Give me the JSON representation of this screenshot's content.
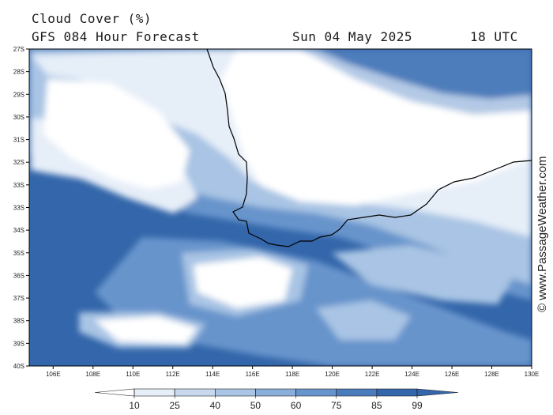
{
  "header": {
    "title": "Cloud Cover (%)",
    "model_line": "GFS 084 Hour Forecast",
    "date": "Sun 04 May 2025",
    "time": "18 UTC"
  },
  "map": {
    "lat_labels": [
      "27S",
      "28S",
      "29S",
      "30S",
      "31S",
      "32S",
      "33S",
      "33S",
      "34S",
      "35S",
      "36S",
      "37S",
      "38S",
      "39S",
      "40S"
    ],
    "lon_labels": [
      "106E",
      "108E",
      "110E",
      "112E",
      "114E",
      "116E",
      "118E",
      "120E",
      "122E",
      "124E",
      "126E",
      "128E",
      "130E"
    ]
  },
  "colorbar": {
    "labels": [
      "10",
      "25",
      "40",
      "50",
      "60",
      "75",
      "85",
      "99"
    ],
    "colors": [
      "#ffffff",
      "#e6eef8",
      "#c8d9ee",
      "#a9c4e4",
      "#88aed9",
      "#6894cc",
      "#4a7cbd",
      "#3366aa"
    ]
  },
  "credit": "© www.PassageWeather.com"
}
